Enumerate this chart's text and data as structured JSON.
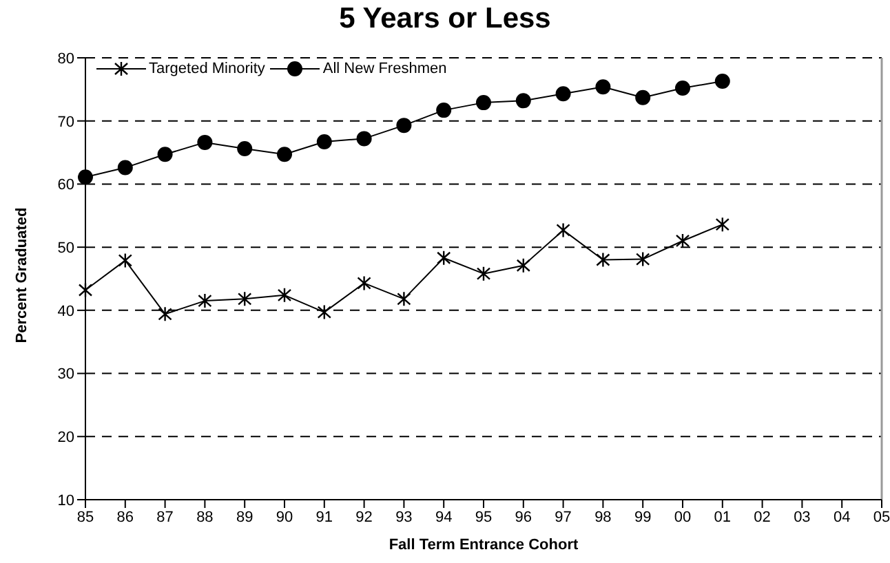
{
  "chart_data": {
    "type": "line",
    "title": "5 Years or Less",
    "xlabel": "Fall Term Entrance Cohort",
    "ylabel": "Percent Graduated",
    "categories": [
      "85",
      "86",
      "87",
      "88",
      "89",
      "90",
      "91",
      "92",
      "93",
      "94",
      "95",
      "96",
      "97",
      "98",
      "99",
      "00",
      "01",
      "02",
      "03",
      "04",
      "05"
    ],
    "series": [
      {
        "name": "Targeted Minority",
        "color": "#000000",
        "marker": "cross",
        "values": [
          43.2,
          47.9,
          39.4,
          41.5,
          41.8,
          42.4,
          39.7,
          44.3,
          41.8,
          48.3,
          45.8,
          47.1,
          52.7,
          48.0,
          48.1,
          51.0,
          53.6,
          null,
          null,
          null,
          null
        ]
      },
      {
        "name": "All New Freshmen",
        "color": "#000000",
        "marker": "circle",
        "values": [
          61.1,
          62.6,
          64.7,
          66.6,
          65.6,
          64.7,
          66.7,
          67.2,
          69.3,
          71.7,
          72.9,
          73.2,
          74.3,
          75.4,
          73.7,
          75.2,
          76.3,
          null,
          null,
          null,
          null
        ]
      }
    ],
    "ylim": [
      10,
      80
    ],
    "yticks": [
      10,
      20,
      30,
      40,
      50,
      60,
      70,
      80
    ],
    "grid": "y",
    "legend": "top left",
    "line_style": "solid"
  }
}
